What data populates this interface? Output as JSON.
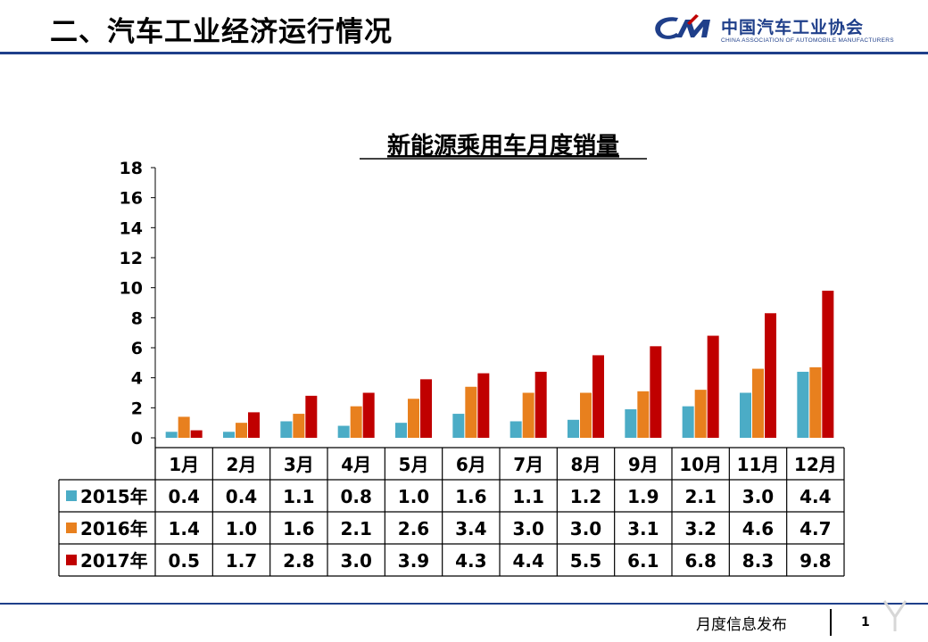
{
  "header": {
    "title": "二、汽车工业经济运行情况",
    "org_name": "中国汽车工业协会",
    "org_name_en": "CHINA ASSOCIATION OF AUTOMOBILE MANUFACTURERS"
  },
  "footer": {
    "text": "月度信息发布",
    "page_number": "1"
  },
  "colors": {
    "brand": "#1f3f8a",
    "series_2015": "#4bacc6",
    "series_2016": "#e8801e",
    "series_2017": "#c00000"
  },
  "icons": [
    "cam-logo-icon",
    "watermark-icon"
  ],
  "chart_data": {
    "type": "bar",
    "title": "新能源乘用车月度销量",
    "categories": [
      "1月",
      "2月",
      "3月",
      "4月",
      "5月",
      "6月",
      "7月",
      "8月",
      "9月",
      "10月",
      "11月",
      "12月"
    ],
    "series": [
      {
        "name": "2015年",
        "color": "#4bacc6",
        "values": [
          0.4,
          0.4,
          1.1,
          0.8,
          1.0,
          1.6,
          1.1,
          1.2,
          1.9,
          2.1,
          3.0,
          4.4
        ]
      },
      {
        "name": "2016年",
        "color": "#e8801e",
        "values": [
          1.4,
          1.0,
          1.6,
          2.1,
          2.6,
          3.4,
          3.0,
          3.0,
          3.1,
          3.2,
          4.6,
          4.7
        ]
      },
      {
        "name": "2017年",
        "color": "#c00000",
        "values": [
          0.5,
          1.7,
          2.8,
          3.0,
          3.9,
          4.3,
          4.4,
          5.5,
          6.1,
          6.8,
          8.3,
          9.8
        ]
      }
    ],
    "yticks": [
      "0",
      "2",
      "4",
      "6",
      "8",
      "10",
      "12",
      "14",
      "16",
      "18"
    ],
    "ylim": [
      0,
      18
    ],
    "data_table_labels": [
      "0.4",
      "0.4",
      "1.1",
      "0.8",
      "1.0",
      "1.6",
      "1.1",
      "1.2",
      "1.9",
      "2.1",
      "3.0",
      "4.4",
      "1.4",
      "1.0",
      "1.6",
      "2.1",
      "2.6",
      "3.4",
      "3.0",
      "3.0",
      "3.1",
      "3.2",
      "4.6",
      "4.7",
      "0.5",
      "1.7",
      "2.8",
      "3.0",
      "3.9",
      "4.3",
      "4.4",
      "5.5",
      "6.1",
      "6.8",
      "8.3",
      "9.8"
    ],
    "grid": false,
    "legend": "data-table"
  }
}
